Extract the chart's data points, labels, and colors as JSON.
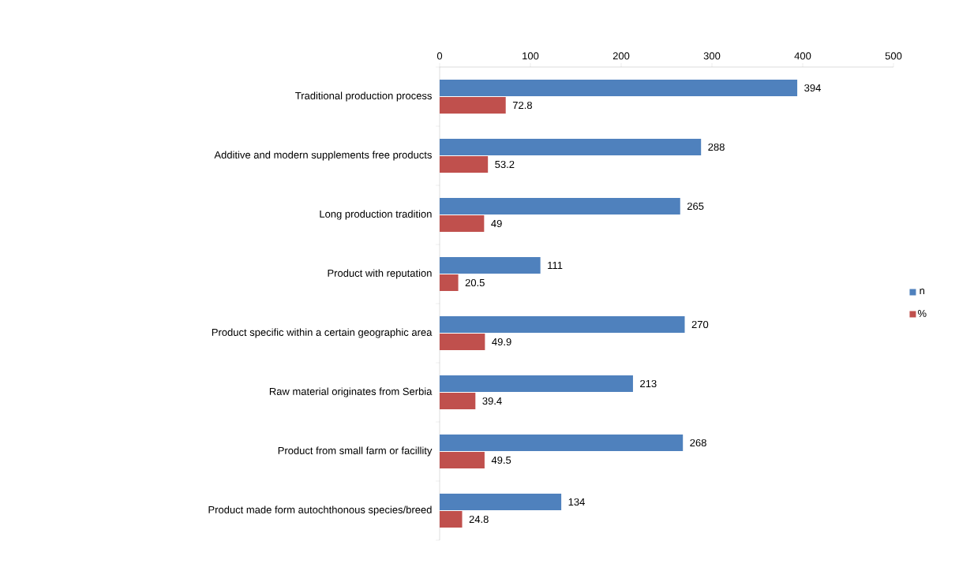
{
  "chart_data": {
    "type": "bar",
    "orientation": "horizontal",
    "categories": [
      "Traditional production process",
      "Additive and modern supplements free products",
      "Long production tradition",
      "Product with reputation",
      "Product specific within a certain geographic area",
      "Raw material originates from Serbia",
      "Product from small farm or facillity",
      "Product made form autochthonous species/breed"
    ],
    "series": [
      {
        "name": "n",
        "color": "#4f81bd",
        "values": [
          394,
          288,
          265,
          111,
          270,
          213,
          268,
          134
        ]
      },
      {
        "name": "%",
        "color": "#c0504d",
        "values": [
          72.8,
          53.2,
          49,
          20.5,
          49.9,
          39.4,
          49.5,
          24.8
        ]
      }
    ],
    "xlim": [
      0,
      500
    ],
    "xticks": [
      0,
      100,
      200,
      300,
      400,
      500
    ],
    "data_labels": true,
    "grid": false,
    "legend": "right"
  }
}
